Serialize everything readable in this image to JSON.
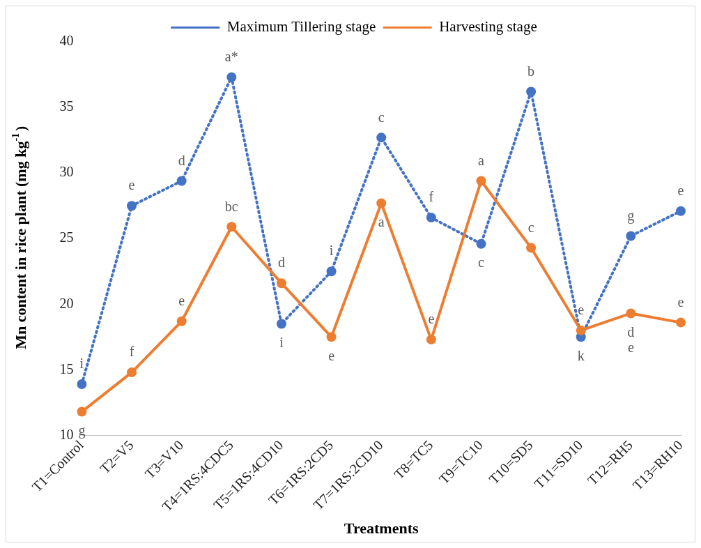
{
  "chart_data": {
    "type": "line",
    "xlabel": "Treatments",
    "ylabel": "Mn content in rice plant (mg kg$^{-1}$)",
    "categories": [
      "T1=Control",
      "T2=V5",
      "T3=V10",
      "T4=1RS:4CDC5",
      "T5=1RS:4CD10",
      "T6=1RS:2CD5",
      "T7=1RS:2CD10",
      "T8=TC5",
      "T9=TC10",
      "T10=SD5",
      "T11=SD10",
      "T12=RH5",
      "T13=RH10"
    ],
    "series": [
      {
        "name": "Maximum Tillering stage",
        "color": "#4472c4",
        "line_style": "dotted",
        "values": [
          13.9,
          27.5,
          29.4,
          37.3,
          18.5,
          22.5,
          32.7,
          26.6,
          24.6,
          36.2,
          17.5,
          25.2,
          27.1
        ]
      },
      {
        "name": "Harvesting stage",
        "color": "#ed7d31",
        "line_style": "solid",
        "values": [
          11.8,
          14.8,
          18.7,
          25.9,
          21.6,
          17.5,
          27.7,
          17.3,
          29.4,
          24.3,
          18.0,
          19.3,
          18.6
        ]
      }
    ],
    "ylim": [
      10,
      40
    ],
    "yticks": [
      10,
      15,
      20,
      25,
      30,
      35,
      40
    ],
    "grid": false,
    "legend": "top",
    "marker": "circle",
    "annotations": [
      {
        "text": "i",
        "x": "T1=Control",
        "y": 13.9
      },
      {
        "text": "g",
        "x": "T1=Control",
        "y": 11.8
      },
      {
        "text": "e",
        "x": "T2=V5",
        "y": 27.5
      },
      {
        "text": "f",
        "x": "T2=V5",
        "y": 14.8
      },
      {
        "text": "d",
        "x": "T3=V10",
        "y": 29.4
      },
      {
        "text": "e",
        "x": "T3=V10",
        "y": 18.7
      },
      {
        "text": "a*",
        "x": "T4=1RS:4CDC5",
        "y": 37.3
      },
      {
        "text": "bc",
        "x": "T4=1RS:4CDC5",
        "y": 25.9
      },
      {
        "text": "d",
        "x": "T5=1RS:4CD10",
        "y": 21.6
      },
      {
        "text": "i",
        "x": "T5=1RS:4CD10",
        "y": 18.5
      },
      {
        "text": "i",
        "x": "T6=1RS:2CD5",
        "y": 22.5
      },
      {
        "text": "e",
        "x": "T6=1RS:2CD5",
        "y": 17.5
      },
      {
        "text": "c",
        "x": "T7=1RS:2CD10",
        "y": 32.7
      },
      {
        "text": "a",
        "x": "T7=1RS:2CD10",
        "y": 27.7
      },
      {
        "text": "f",
        "x": "T8=TC5",
        "y": 26.6
      },
      {
        "text": "e",
        "x": "T8=TC5",
        "y": 17.3
      },
      {
        "text": "a",
        "x": "T9=TC10",
        "y": 29.4
      },
      {
        "text": "c",
        "x": "T9=TC10",
        "y": 24.6
      },
      {
        "text": "b",
        "x": "T10=SD5",
        "y": 36.2
      },
      {
        "text": "c",
        "x": "T10=SD5",
        "y": 24.3
      },
      {
        "text": "e",
        "x": "T11=SD10",
        "y": 18.0
      },
      {
        "text": "k",
        "x": "T11=SD10",
        "y": 17.5
      },
      {
        "text": "g",
        "x": "T12=RH5",
        "y": 25.2
      },
      {
        "text": "d",
        "x": "T12=RH5",
        "y": 19.3
      },
      {
        "text": "e",
        "x": "T12=RH5",
        "y": 19.3
      },
      {
        "text": "e",
        "x": "T13=RH10",
        "y": 27.1
      },
      {
        "text": "e",
        "x": "T13=RH10",
        "y": 18.6
      }
    ]
  }
}
